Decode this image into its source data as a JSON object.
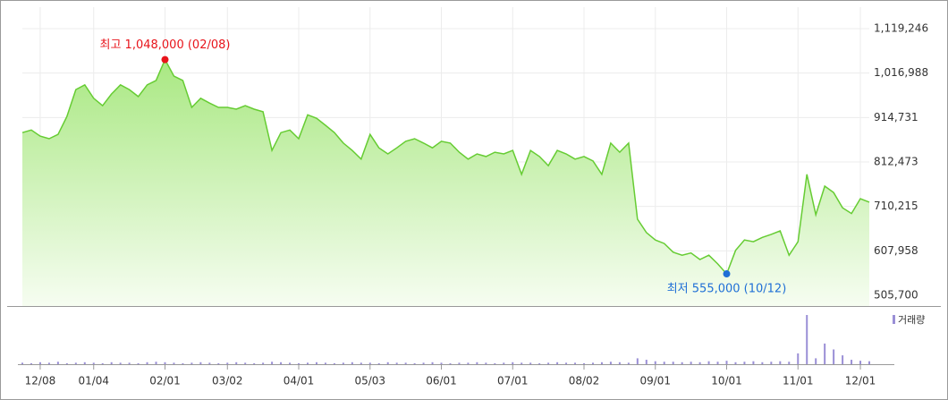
{
  "chart_data": [
    {
      "type": "line",
      "color": "#66cc33",
      "annotations": [
        {
          "text": "최고 1,048,000 (02/08)",
          "color": "#e8141b",
          "index": 16,
          "position": "above"
        },
        {
          "text": "최저 555,000 (10/12)",
          "color": "#1f6fd6",
          "index": 79,
          "position": "below"
        }
      ],
      "categories": [
        null,
        null,
        "12/08",
        null,
        null,
        null,
        null,
        null,
        "01/04",
        null,
        null,
        null,
        null,
        null,
        null,
        null,
        "02/01",
        null,
        null,
        null,
        null,
        null,
        null,
        "03/02",
        null,
        null,
        null,
        null,
        null,
        null,
        null,
        "04/01",
        null,
        null,
        null,
        null,
        null,
        null,
        null,
        "05/03",
        null,
        null,
        null,
        null,
        null,
        null,
        null,
        "06/01",
        null,
        null,
        null,
        null,
        null,
        null,
        null,
        "07/01",
        null,
        null,
        null,
        null,
        null,
        null,
        null,
        "08/02",
        null,
        null,
        null,
        null,
        null,
        null,
        null,
        "09/01",
        null,
        null,
        null,
        null,
        null,
        null,
        null,
        "10/01",
        null,
        null,
        null,
        null,
        null,
        null,
        null,
        "11/01",
        null,
        null,
        null,
        null,
        null,
        null,
        "12/01",
        null
      ],
      "values": [
        880000,
        886000,
        872000,
        866000,
        876000,
        917000,
        979000,
        990000,
        959000,
        942000,
        969000,
        990000,
        979000,
        963000,
        990000,
        1000000,
        1048000,
        1010000,
        1000000,
        938000,
        959000,
        948000,
        938000,
        938000,
        934000,
        942000,
        934000,
        928000,
        839000,
        880000,
        886000,
        866000,
        921000,
        913000,
        897000,
        880000,
        856000,
        839000,
        819000,
        876000,
        845000,
        831000,
        845000,
        860000,
        866000,
        856000,
        845000,
        860000,
        856000,
        835000,
        819000,
        831000,
        825000,
        835000,
        831000,
        839000,
        784000,
        839000,
        825000,
        804000,
        839000,
        831000,
        819000,
        825000,
        815000,
        784000,
        856000,
        835000,
        856000,
        681000,
        650000,
        633000,
        625000,
        605000,
        598000,
        603000,
        588000,
        598000,
        578000,
        555000,
        609000,
        633000,
        629000,
        639000,
        646000,
        654000,
        598000,
        629000,
        784000,
        691000,
        757000,
        742000,
        707000,
        694000,
        728000,
        720000
      ],
      "ylim": [
        481000,
        1168700
      ],
      "yticks": [
        {
          "value": 505700,
          "label": "505,700"
        },
        {
          "value": 607958,
          "label": "607,958"
        },
        {
          "value": 710215,
          "label": "710,215"
        },
        {
          "value": 812473,
          "label": "812,473"
        },
        {
          "value": 914731,
          "label": "914,731"
        },
        {
          "value": 1016988,
          "label": "1,016,988"
        },
        {
          "value": 1119246,
          "label": "1,119,246"
        }
      ],
      "grid": true
    },
    {
      "type": "bar",
      "ylim": [
        0,
        100
      ],
      "series": [
        {
          "name": "거래량",
          "color": "#9a8fd6",
          "values": [
            3,
            2,
            4,
            3,
            5,
            2,
            3,
            4,
            3,
            2,
            4,
            3,
            3,
            2,
            4,
            5,
            4,
            3,
            2,
            3,
            4,
            3,
            2,
            3,
            4,
            3,
            2,
            3,
            5,
            4,
            3,
            2,
            3,
            4,
            3,
            2,
            3,
            4,
            3,
            3,
            2,
            4,
            3,
            3,
            2,
            3,
            4,
            3,
            2,
            3,
            3,
            4,
            3,
            2,
            3,
            4,
            3,
            3,
            2,
            3,
            4,
            3,
            3,
            2,
            3,
            4,
            5,
            4,
            3,
            12,
            9,
            6,
            5,
            5,
            4,
            5,
            4,
            6,
            5,
            7,
            4,
            5,
            6,
            4,
            5,
            6,
            5,
            22,
            100,
            12,
            42,
            30,
            18,
            9,
            7,
            6
          ]
        }
      ]
    }
  ]
}
